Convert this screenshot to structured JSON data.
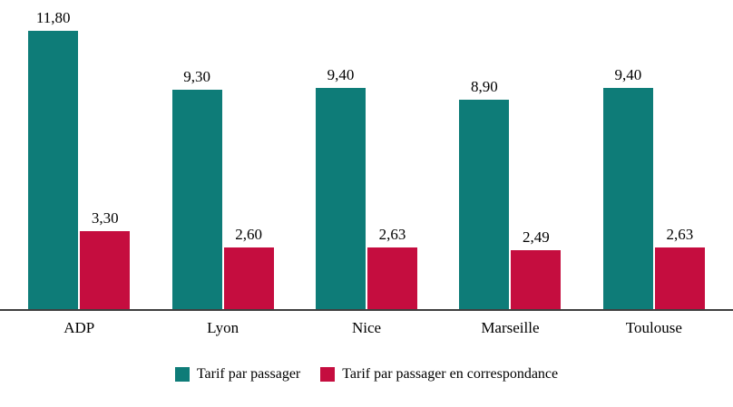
{
  "chart_data": {
    "type": "bar",
    "categories": [
      "ADP",
      "Lyon",
      "Nice",
      "Marseille",
      "Toulouse"
    ],
    "series": [
      {
        "name": "Tarif par passager",
        "color": "#0e7c78",
        "values": [
          11.8,
          9.3,
          9.4,
          8.9,
          9.4
        ],
        "labels": [
          "11,80",
          "9,30",
          "9,40",
          "8,90",
          "9,40"
        ]
      },
      {
        "name": "Tarif par passager en correspondance",
        "color": "#c50d3f",
        "values": [
          3.3,
          2.6,
          2.63,
          2.49,
          2.63
        ],
        "labels": [
          "3,30",
          "2,60",
          "2,63",
          "2,49",
          "2,63"
        ]
      }
    ],
    "title": "",
    "xlabel": "",
    "ylabel": "",
    "ylim": [
      0,
      12
    ],
    "grid": false,
    "legend_position": "bottom",
    "axis_color": "#3f3f3f",
    "decimal_separator": ","
  }
}
